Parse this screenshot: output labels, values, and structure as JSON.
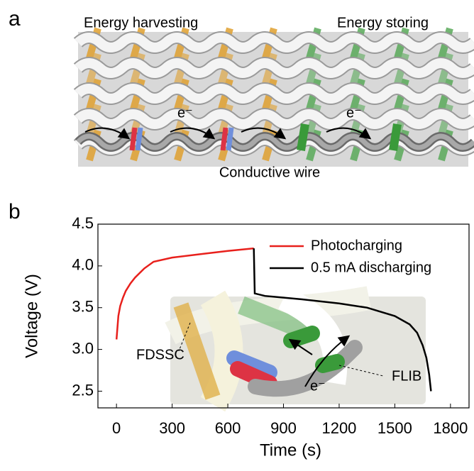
{
  "panel_a": {
    "label": "a",
    "left_title": "Energy harvesting",
    "right_title": "Energy storing",
    "electron_labels": [
      "e⁻",
      "e⁻"
    ],
    "wire_label": "Conductive wire"
  },
  "panel_b": {
    "label": "b"
  },
  "inset": {
    "labels": [
      "FDSSC",
      "FLIB",
      "e⁻"
    ]
  },
  "chart_data": {
    "type": "line",
    "x_label": "Time (s)",
    "y_label": "Voltage (V)",
    "xlim": [
      -100,
      1900
    ],
    "xticks": [
      0,
      300,
      600,
      900,
      1200,
      1500,
      1800
    ],
    "ylim": [
      2.3,
      4.5
    ],
    "yticks": [
      2.5,
      {
        "value": 3,
        "label": "3.0"
      },
      3.5,
      {
        "value": 4,
        "label": "4.0"
      },
      4.5
    ],
    "legend": "upper right",
    "series": [
      {
        "name": "Photocharging",
        "color": "#e8201c",
        "x": [
          0,
          10,
          20,
          35,
          50,
          75,
          100,
          150,
          200,
          300,
          450,
          600,
          740
        ],
        "values": [
          3.12,
          3.4,
          3.52,
          3.62,
          3.7,
          3.79,
          3.86,
          3.97,
          4.05,
          4.1,
          4.14,
          4.18,
          4.21
        ]
      },
      {
        "name": "0.5 mA discharging",
        "color": "#000000",
        "x": [
          740,
          745,
          800,
          1000,
          1200,
          1350,
          1500,
          1580,
          1620,
          1650,
          1670,
          1685,
          1695
        ],
        "values": [
          4.21,
          3.67,
          3.64,
          3.6,
          3.55,
          3.5,
          3.4,
          3.3,
          3.2,
          3.05,
          2.9,
          2.7,
          2.5
        ]
      }
    ]
  }
}
